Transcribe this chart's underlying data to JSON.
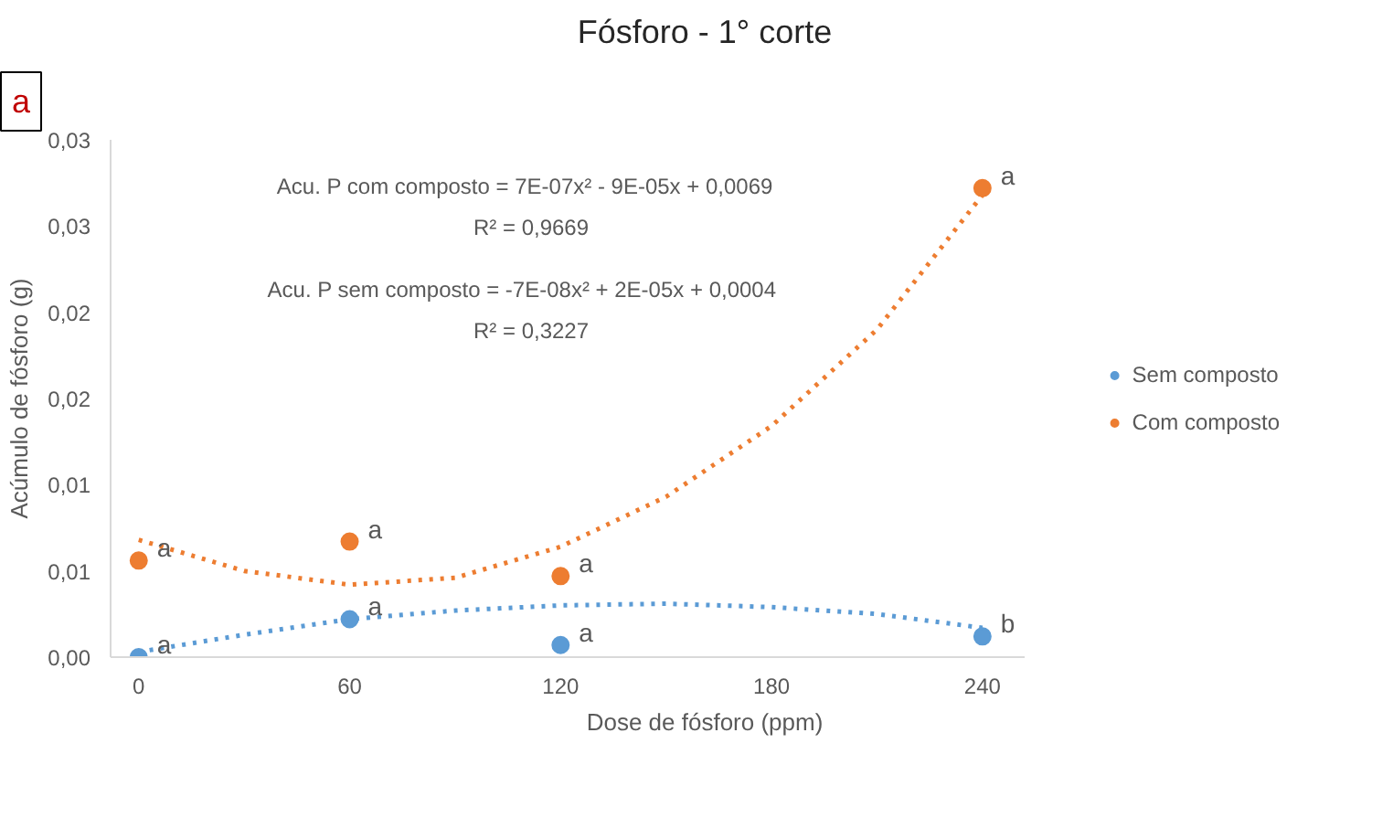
{
  "chart_data": {
    "type": "scatter",
    "title": "Fósforo - 1° corte",
    "xlabel": "Dose de fósforo (ppm)",
    "ylabel": "Acúmulo de fósforo (g)",
    "x": [
      0,
      60,
      120,
      240
    ],
    "series": [
      {
        "name": "Sem composto",
        "color": "#5b9bd5",
        "marker": "circle",
        "values": [
          0.0,
          0.0022,
          0.0007,
          0.0012
        ]
      },
      {
        "name": "Com composto",
        "type": "scatter",
        "color": "#ed7d31",
        "marker": "circle",
        "values": [
          0.0056,
          0.0067,
          0.0047,
          0.0272
        ]
      },
      {
        "type": "line",
        "color": "#5b9bd5",
        "line_style": "dotted",
        "x": [
          0,
          30,
          60,
          90,
          120,
          150,
          180,
          210,
          240
        ],
        "values": [
          0.0003,
          0.0013,
          0.0022,
          0.0027,
          0.003,
          0.0031,
          0.0029,
          0.0025,
          0.0017
        ]
      },
      {
        "type": "line",
        "color": "#ed7d31",
        "line_style": "dotted",
        "x": [
          0,
          30,
          60,
          90,
          120,
          150,
          180,
          210,
          240
        ],
        "values": [
          0.0068,
          0.005,
          0.0042,
          0.0046,
          0.0064,
          0.0093,
          0.0134,
          0.019,
          0.0268
        ]
      }
    ],
    "xlim": [
      -8,
      252
    ],
    "xticks": [
      0,
      60,
      120,
      180,
      240
    ],
    "ylim": [
      0,
      0.03
    ],
    "yticks": [
      {
        "value": 0,
        "label": "0,00"
      },
      {
        "value": 0.005,
        "label": "0,01"
      },
      {
        "value": 0.01,
        "label": "0,01"
      },
      {
        "value": 0.015,
        "label": "0,02"
      },
      {
        "value": 0.02,
        "label": "0,02"
      },
      {
        "value": 0.025,
        "label": "0,03"
      },
      {
        "value": 0.03,
        "label": "0,03"
      }
    ],
    "grid": false,
    "legend": "right",
    "annotations": [
      "a",
      "Acu.  P com composto  = 7E-07x² - 9E-05x + 0,0069",
      "R² = 0,9669",
      "Acu.  P  sem composto  = -7E-08x² + 2E-05x + 0,0004",
      "R² = 0,3227",
      {
        "text": "a",
        "x": 0,
        "y": 0.0
      },
      {
        "text": "a",
        "x": 60,
        "y": 0.0022
      },
      {
        "text": "a",
        "x": 120,
        "y": 0.0007
      },
      {
        "text": "b",
        "x": 240,
        "y": 0.0012
      },
      {
        "text": "a",
        "x": 0,
        "y": 0.0056
      },
      {
        "text": "a",
        "x": 60,
        "y": 0.0067
      },
      {
        "text": "a",
        "x": 120,
        "y": 0.0047
      },
      {
        "text": "a",
        "x": 240,
        "y": 0.0272
      }
    ]
  }
}
